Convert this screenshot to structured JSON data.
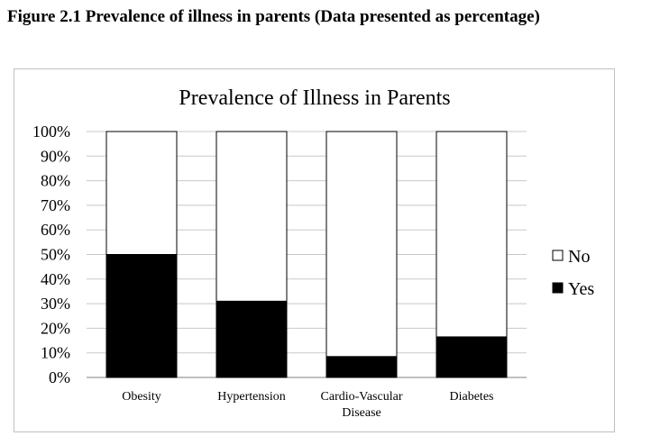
{
  "figure_caption": "Figure 2.1 Prevalence of illness in parents (Data presented as percentage)",
  "chart_data": {
    "type": "bar",
    "stacked": true,
    "percent_stacked": true,
    "title": "Prevalence of Illness in Parents",
    "categories": [
      [
        "Obesity"
      ],
      [
        "Hypertension"
      ],
      [
        "Cardio-Vascular",
        "Disease"
      ],
      [
        "Diabetes"
      ]
    ],
    "series": [
      {
        "name": "Yes",
        "values": [
          50,
          31,
          8.5,
          16.5
        ],
        "color": "#000000"
      },
      {
        "name": "No",
        "values": [
          50,
          69,
          91.5,
          83.5
        ],
        "color": "#ffffff"
      }
    ],
    "yticks": [
      "0%",
      "10%",
      "20%",
      "30%",
      "40%",
      "50%",
      "60%",
      "70%",
      "80%",
      "90%",
      "100%"
    ],
    "ylim": [
      0,
      100
    ],
    "grid": true,
    "legend": {
      "position": "right",
      "order": [
        "No",
        "Yes"
      ]
    }
  }
}
